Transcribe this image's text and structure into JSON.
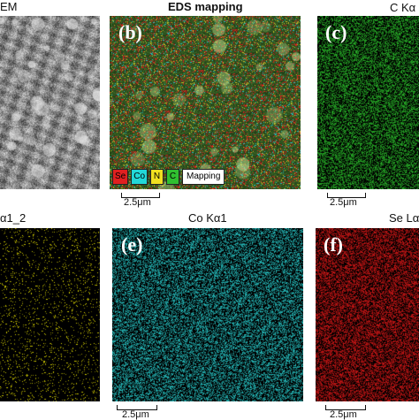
{
  "labels": {
    "sem": "EM",
    "eds": "EDS mapping",
    "c": "C Kα",
    "n": "α1_2",
    "co": "Co Kα1",
    "se": "Se Lα"
  },
  "panel_letters": {
    "b": "(b)",
    "c": "(c)",
    "e": "(e)",
    "f": "(f)"
  },
  "legend": {
    "items": [
      {
        "text": "Se",
        "color": "#e02020"
      },
      {
        "text": "Co",
        "color": "#22d8d8"
      },
      {
        "text": "N",
        "color": "#f0e020"
      },
      {
        "text": "C",
        "color": "#30c030"
      }
    ],
    "mapping": "Mapping"
  },
  "scale_bar": "2.5μm",
  "colors": {
    "carbon": "#2fd02f",
    "nitrogen": "#e6e000",
    "cobalt": "#2ad4d4",
    "selenium": "#e01818"
  }
}
